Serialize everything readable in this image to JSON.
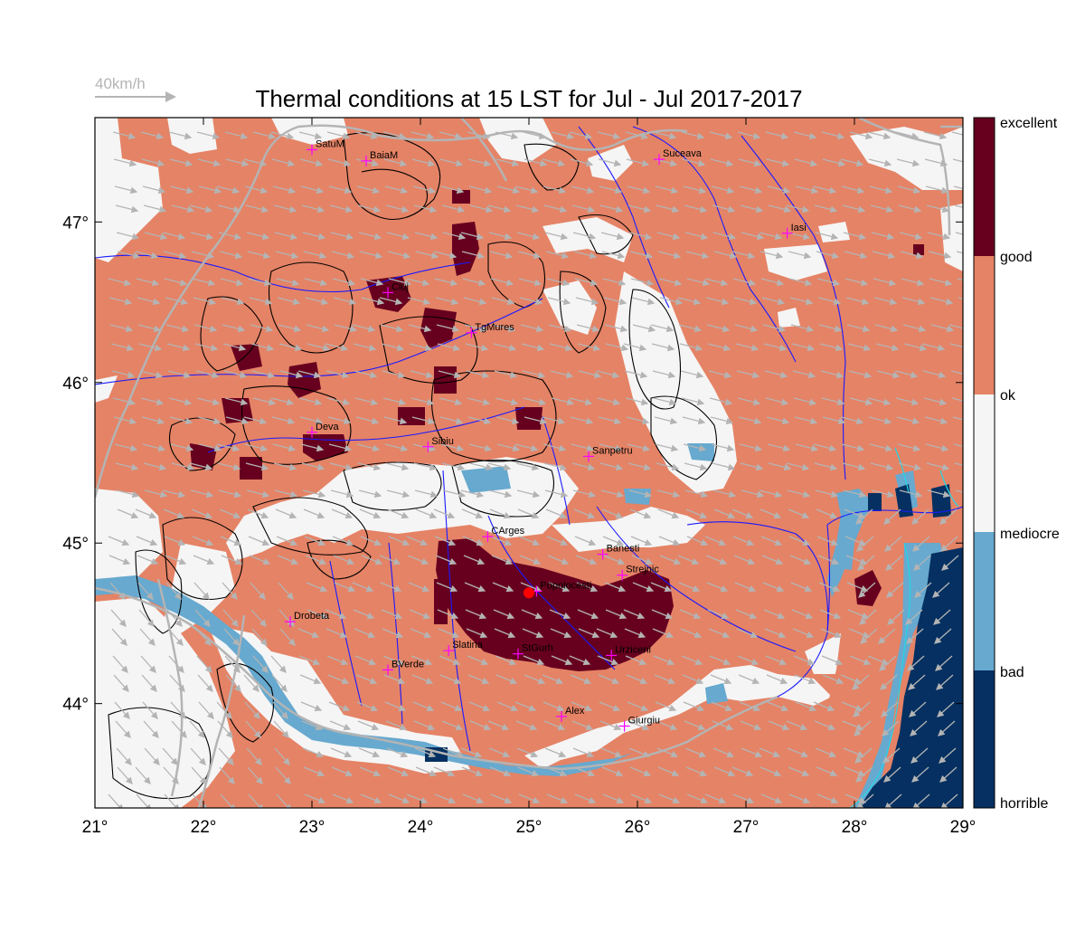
{
  "title": "Thermal conditions at 15 LST for Jul - Jul  2017-2017",
  "wind_key": {
    "label": "40km/h",
    "color": "#b4b4b4"
  },
  "colors": {
    "excellent_good": "#67001f",
    "good_ok": "#e58366",
    "ok_mediocre": "#f5f5f5",
    "mediocre_bad": "#67a9cf",
    "bad_horrible": "#053061",
    "rivers": "#1a1aff",
    "borders": "#b4b4b4",
    "contours": "#000000",
    "city_marker": "#ff00ff",
    "highlight_point": "#ff0000"
  },
  "map": {
    "lon_range": [
      21,
      29
    ],
    "lat_range": [
      43.35,
      47.65
    ],
    "x_ticks": [
      {
        "value": 21,
        "label": "21°"
      },
      {
        "value": 22,
        "label": "22°"
      },
      {
        "value": 23,
        "label": "23°"
      },
      {
        "value": 24,
        "label": "24°"
      },
      {
        "value": 25,
        "label": "25°"
      },
      {
        "value": 26,
        "label": "26°"
      },
      {
        "value": 27,
        "label": "27°"
      },
      {
        "value": 28,
        "label": "28°"
      },
      {
        "value": 29,
        "label": "29°"
      }
    ],
    "y_ticks": [
      {
        "value": 44,
        "label": "44°"
      },
      {
        "value": 45,
        "label": "45°"
      },
      {
        "value": 46,
        "label": "46°"
      },
      {
        "value": 47,
        "label": "47°"
      }
    ],
    "cities": [
      {
        "name": "SatuM",
        "lon": 23.0,
        "lat": 47.45
      },
      {
        "name": "BaiaM",
        "lon": 23.5,
        "lat": 47.38
      },
      {
        "name": "Suceava",
        "lon": 26.2,
        "lat": 47.39
      },
      {
        "name": "Iasi",
        "lon": 27.38,
        "lat": 46.93
      },
      {
        "name": "Cluj",
        "lon": 23.7,
        "lat": 46.56
      },
      {
        "name": "TgMures",
        "lon": 24.47,
        "lat": 46.31
      },
      {
        "name": "Deva",
        "lon": 23.0,
        "lat": 45.69
      },
      {
        "name": "Sibiu",
        "lon": 24.07,
        "lat": 45.6
      },
      {
        "name": "Sanpetru",
        "lon": 25.55,
        "lat": 45.54
      },
      {
        "name": "CArges",
        "lon": 24.62,
        "lat": 45.04
      },
      {
        "name": "Banesti",
        "lon": 25.68,
        "lat": 44.93
      },
      {
        "name": "Strejnic",
        "lon": 25.86,
        "lat": 44.8
      },
      {
        "name": "Popolocesti",
        "lon": 25.07,
        "lat": 44.7
      },
      {
        "name": "Drobeta",
        "lon": 22.8,
        "lat": 44.51
      },
      {
        "name": "Slatina",
        "lon": 24.26,
        "lat": 44.33
      },
      {
        "name": "StGurh",
        "lon": 24.9,
        "lat": 44.31
      },
      {
        "name": "Urziceni",
        "lon": 25.76,
        "lat": 44.3
      },
      {
        "name": "BVerde",
        "lon": 23.7,
        "lat": 44.21
      },
      {
        "name": "Alex",
        "lon": 25.3,
        "lat": 43.92
      },
      {
        "name": "Giurgiu",
        "lon": 25.88,
        "lat": 43.86
      }
    ],
    "highlight_point": {
      "lon": 25.0,
      "lat": 44.69
    }
  },
  "colorbar": {
    "labels": [
      "excellent",
      "good",
      "ok",
      "mediocre",
      "bad",
      "horrible"
    ]
  }
}
